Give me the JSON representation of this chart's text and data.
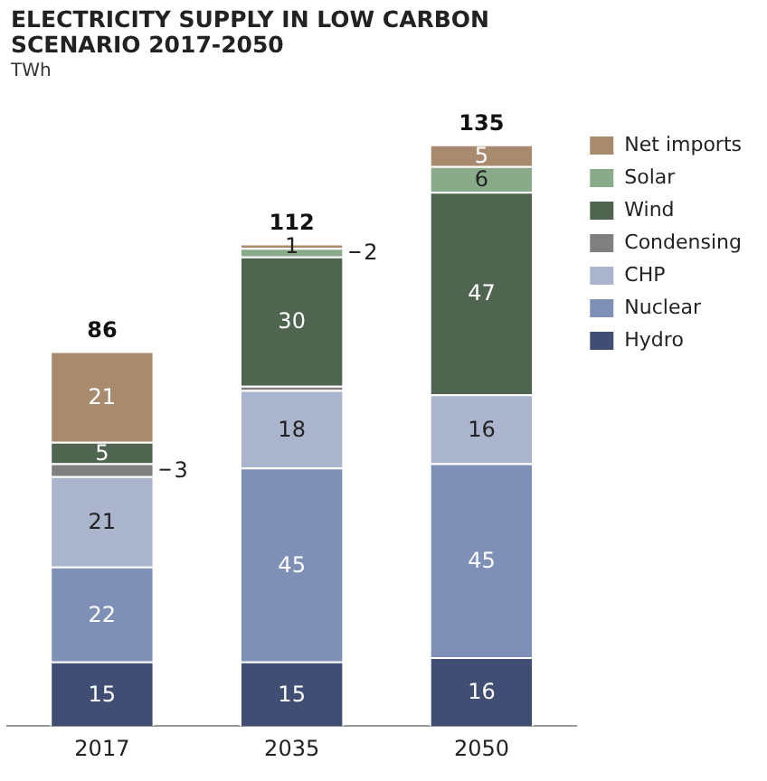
{
  "chart_data": {
    "type": "bar",
    "title": "ELECTRICITY SUPPLY  IN LOW CARBON SCENARIO 2017-2050",
    "ylabel": "TWh",
    "categories": [
      "2017",
      "2035",
      "2050"
    ],
    "stacked": true,
    "legend": "right",
    "grid": false,
    "tick_labels": "x",
    "totals": [
      "86",
      "112",
      "135"
    ],
    "series": [
      {
        "name": "Hydro",
        "color": "#3f4e72",
        "values": [
          15,
          15,
          16
        ],
        "value_labels": [
          "15",
          "15",
          "16"
        ]
      },
      {
        "name": "Nuclear",
        "color": "#7e90b6",
        "values": [
          22,
          45,
          45
        ],
        "value_labels": [
          "22",
          "45",
          "45"
        ]
      },
      {
        "name": "CHP",
        "color": "#aab4cc",
        "values": [
          21,
          18,
          16
        ],
        "value_labels": [
          "21",
          "18",
          "16"
        ]
      },
      {
        "name": "Condensing",
        "color": "#808080",
        "values": [
          3,
          1,
          null
        ],
        "value_labels": [
          "3",
          null,
          null
        ]
      },
      {
        "name": "Wind",
        "color": "#4f6550",
        "values": [
          5,
          30,
          47
        ],
        "value_labels": [
          "5",
          "30",
          "47"
        ]
      },
      {
        "name": "Solar",
        "color": "#8aab8a",
        "values": [
          null,
          2,
          6
        ],
        "value_labels": [
          null,
          "2",
          "6"
        ]
      },
      {
        "name": "Net imports",
        "color": "#a88a6e",
        "values": [
          21,
          1,
          5
        ],
        "value_labels": [
          "21",
          "1",
          "5"
        ]
      }
    ]
  }
}
